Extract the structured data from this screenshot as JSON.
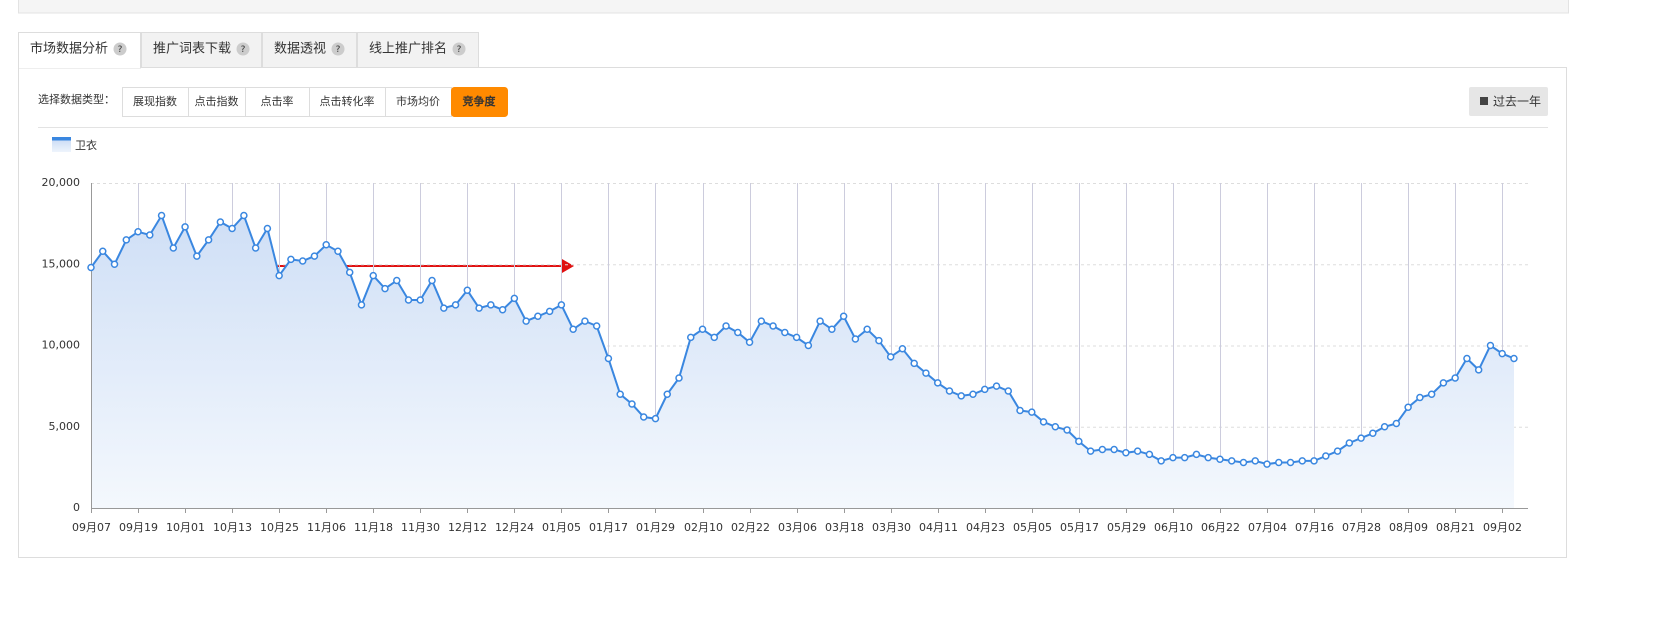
{
  "tabs": [
    {
      "label": "市场数据分析",
      "help": "?"
    },
    {
      "label": "推广词表下载",
      "help": "?"
    },
    {
      "label": "数据透视",
      "help": "?"
    },
    {
      "label": "线上推广排名",
      "help": "?"
    }
  ],
  "active_tab": 0,
  "filter_label": "选择数据类型：",
  "data_types": [
    "展现指数",
    "点击指数",
    "点击率",
    "点击转化率",
    "市场均价",
    "竞争度"
  ],
  "active_data_type": 5,
  "date_range": "过去一年",
  "chart_data": {
    "type": "line",
    "area": true,
    "grid": true,
    "categories": [
      "09月07",
      null,
      null,
      null,
      "09月19",
      null,
      null,
      null,
      "10月01",
      null,
      null,
      null,
      "10月13",
      null,
      null,
      null,
      "10月25",
      null,
      null,
      null,
      "11月06",
      null,
      null,
      null,
      "11月18",
      null,
      null,
      null,
      "11月30",
      null,
      null,
      null,
      "12月12",
      null,
      null,
      null,
      "12月24",
      null,
      null,
      null,
      "01月05",
      null,
      null,
      null,
      "01月17",
      null,
      null,
      null,
      "01月29",
      null,
      null,
      null,
      "02月10",
      null,
      null,
      null,
      "02月22",
      null,
      null,
      null,
      "03月06",
      null,
      null,
      null,
      "03月18",
      null,
      null,
      null,
      "03月30",
      null,
      null,
      null,
      "04月11",
      null,
      null,
      null,
      "04月23",
      null,
      null,
      null,
      "05月05",
      null,
      null,
      null,
      "05月17",
      null,
      null,
      null,
      "05月29",
      null,
      null,
      null,
      "06月10",
      null,
      null,
      null,
      "06月22",
      null,
      null,
      null,
      "07月04",
      null,
      null,
      null,
      "07月16",
      null,
      null,
      null,
      "07月28",
      null,
      null,
      null,
      "08月09",
      null,
      null,
      null,
      "08月21",
      null,
      null,
      null,
      "09月02",
      null
    ],
    "series": [
      {
        "name": "卫衣",
        "color": "#3a87e0",
        "values": [
          14800,
          15800,
          15000,
          16500,
          17000,
          16800,
          18000,
          16000,
          17300,
          15500,
          16500,
          17600,
          17200,
          18000,
          16000,
          17200,
          14300,
          15300,
          15200,
          15500,
          16200,
          15800,
          14500,
          12500,
          14300,
          13500,
          14000,
          12800,
          12800,
          14000,
          12300,
          12500,
          13400,
          12300,
          12500,
          12200,
          12900,
          11500,
          11800,
          12100,
          12500,
          11000,
          11500,
          11200,
          9200,
          7000,
          6400,
          5600,
          5500,
          7000,
          8000,
          10500,
          11000,
          10500,
          11200,
          10800,
          10200,
          11500,
          11200,
          10800,
          10500,
          10000,
          11500,
          11000,
          11800,
          10400,
          11000,
          10300,
          9300,
          9800,
          8900,
          8300,
          7700,
          7200,
          6900,
          7000,
          7300,
          7500,
          7200,
          6000,
          5900,
          5300,
          5000,
          4800,
          4100,
          3500,
          3600,
          3600,
          3400,
          3500,
          3300,
          2900,
          3100,
          3100,
          3300,
          3100,
          3000,
          2900,
          2800,
          2900,
          2700,
          2800,
          2800,
          2900,
          2900,
          3200,
          3500,
          4000,
          4300,
          4600,
          5000,
          5200,
          6200,
          6800,
          7000,
          7700,
          8000,
          9200,
          8500,
          10000,
          9500,
          9200
        ]
      }
    ],
    "ylim": [
      0,
      20000
    ],
    "yticks": [
      0,
      {
        "value": 5000,
        "label": "5,000"
      },
      {
        "value": 10000,
        "label": "10,000"
      },
      {
        "value": 15000,
        "label": "15,000"
      },
      {
        "value": 20000,
        "label": "20,000"
      }
    ]
  }
}
